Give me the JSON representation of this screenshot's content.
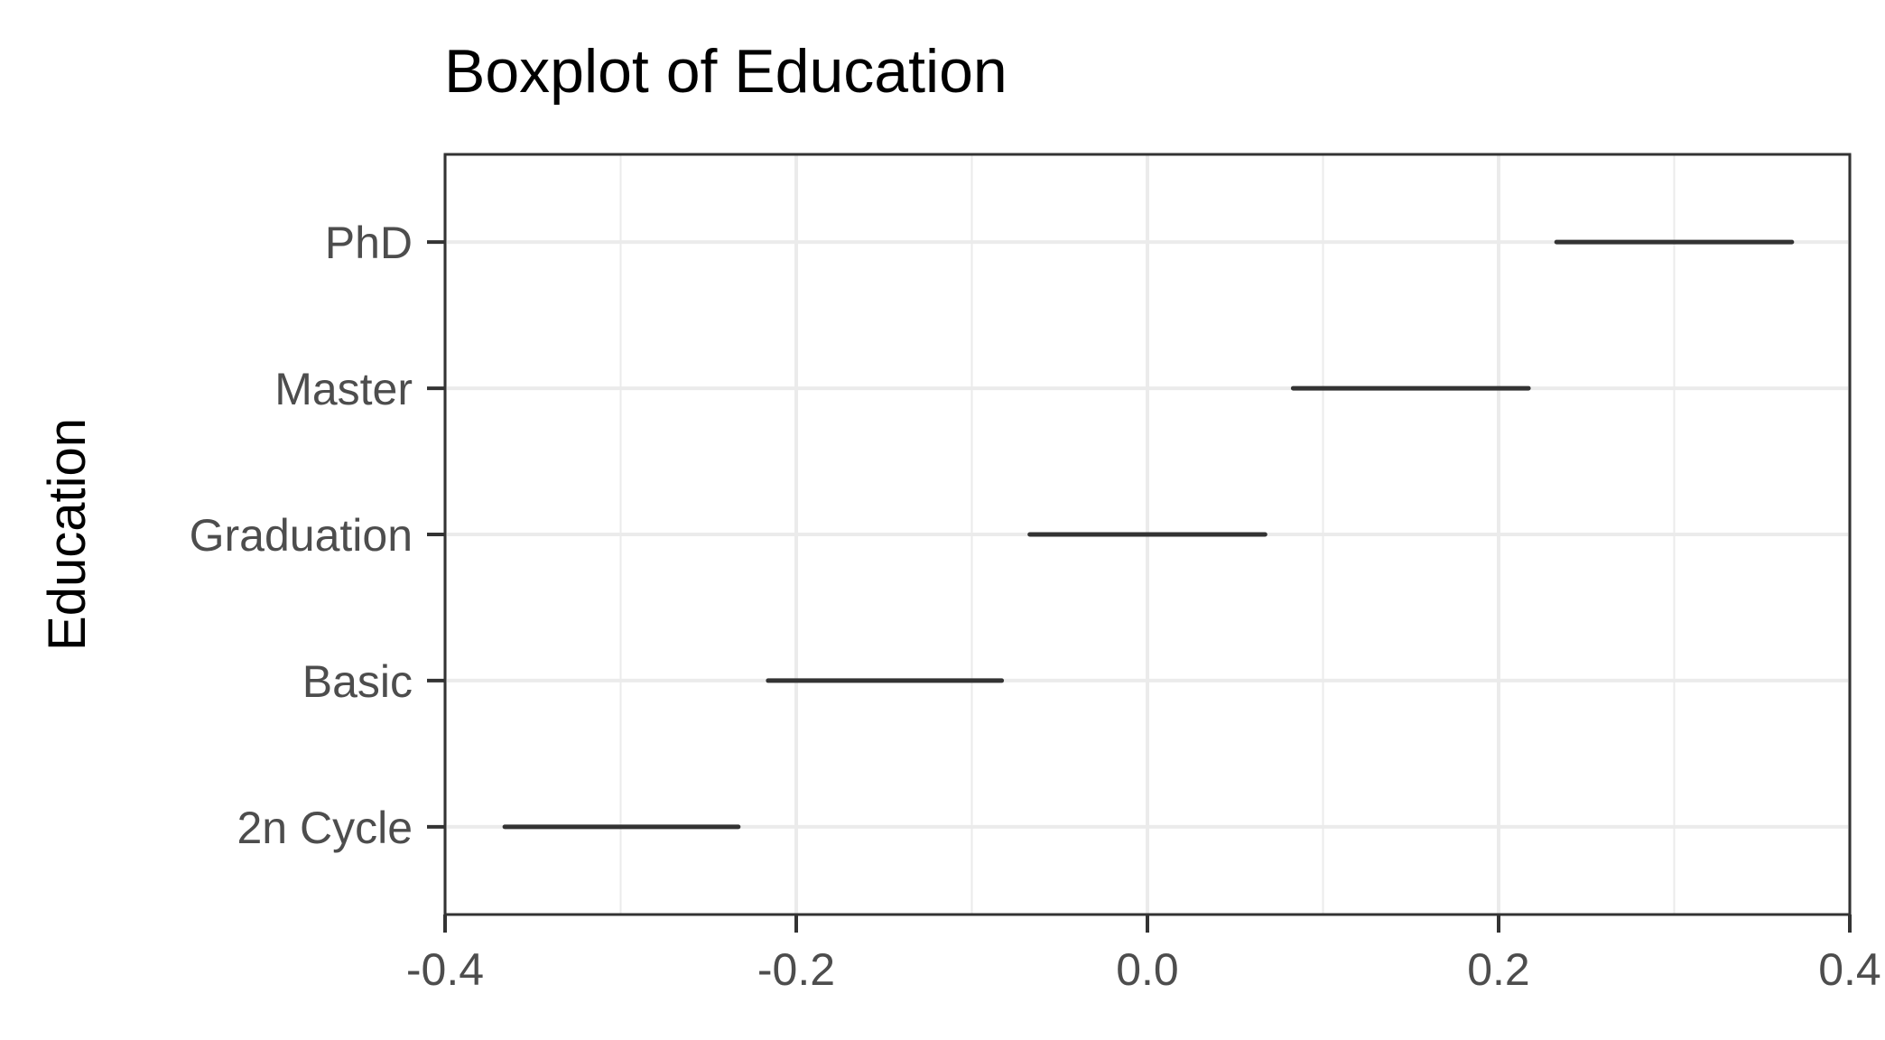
{
  "chart_data": {
    "type": "boxplot",
    "title": "Boxplot of Education",
    "xlabel": "",
    "ylabel": "Education",
    "orientation": "horizontal",
    "categories": [
      "2n Cycle",
      "Basic",
      "Graduation",
      "Master",
      "PhD"
    ],
    "boxes": [
      {
        "category": "2n Cycle",
        "min": -0.366,
        "max": -0.233
      },
      {
        "category": "Basic",
        "min": -0.216,
        "max": -0.083
      },
      {
        "category": "Graduation",
        "min": -0.067,
        "max": 0.067
      },
      {
        "category": "Master",
        "min": 0.083,
        "max": 0.217
      },
      {
        "category": "PhD",
        "min": 0.233,
        "max": 0.367
      }
    ],
    "xlim": [
      -0.4,
      0.4
    ],
    "x_ticks": [
      "-0.4",
      "-0.2",
      "0.0",
      "0.2",
      "0.4"
    ],
    "x_tick_values": [
      -0.4,
      -0.2,
      0.0,
      0.2,
      0.4
    ],
    "x_minor_tick_values": [
      -0.3,
      -0.1,
      0.1,
      0.3
    ],
    "grid": true,
    "legend": "none",
    "colors": {
      "line": "#333333",
      "grid": "#ebebeb",
      "panel_border": "#333333",
      "tick_label": "#4d4d4d",
      "title": "#000000"
    }
  }
}
